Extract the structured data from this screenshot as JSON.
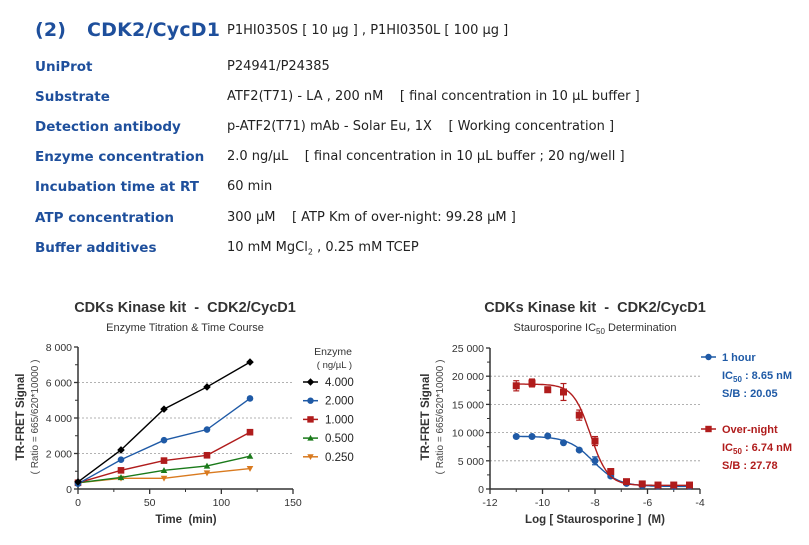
{
  "header": {
    "number": "(2)",
    "title": "CDK2/CycD1",
    "catalog": "P1HI0350S [ 10 µg ] , P1HI0350L [ 100 µg ]"
  },
  "specs": [
    {
      "label": "UniProt",
      "value": "P24941/P24385"
    },
    {
      "label": "Substrate",
      "value": "ATF2(T71) - LA , 200 nM    [ final concentration in 10 µL buffer ]"
    },
    {
      "label": "Detection antibody",
      "value": "p-ATF2(T71) mAb - Solar Eu, 1X    [ Working concentration ]"
    },
    {
      "label": "Enzyme concentration",
      "value": "2.0 ng/µL    [ final concentration in 10 µL buffer ; 20 ng/well ]"
    },
    {
      "label": "Incubation time at RT",
      "value": "60 min"
    },
    {
      "label": "ATP concentration",
      "value": "300 µM    [ ATP Km of over-night: 99.28 µM ]"
    },
    {
      "label": "Buffer additives",
      "value_pre": "10 mM MgCl",
      "value_sub": "2",
      "value_post": " , 0.25 mM TCEP"
    }
  ],
  "chart_data": [
    {
      "type": "line",
      "title": "CDKs Kinase kit  -  CDK2/CycD1",
      "subtitle": "Enzyme Titration & Time Course",
      "xlabel": "Time  (min)",
      "ylabel": "TR-FRET Signal",
      "ylabel2": "( Ratio = 665/620*10000 )",
      "xlim": [
        0,
        150
      ],
      "ylim": [
        0,
        8000
      ],
      "xticks": [
        0,
        50,
        100,
        150
      ],
      "xtick_labels": [
        "0",
        "50",
        "100",
        "150"
      ],
      "yticks": [
        0,
        2000,
        4000,
        6000,
        8000
      ],
      "ytick_labels": [
        "0",
        "2 000",
        "4 000",
        "6 000",
        "8 000"
      ],
      "grid": "dashed horizontal at 2000, 4000, 6000",
      "legend_title": "Enzyme",
      "legend_subtitle": "( ng/µL )",
      "legend_position": "right",
      "x": [
        0,
        30,
        60,
        90,
        120
      ],
      "series": [
        {
          "name": "4.000",
          "color": "#000000",
          "marker": "diamond",
          "values": [
            400,
            2200,
            4500,
            5750,
            7150
          ]
        },
        {
          "name": "2.000",
          "color": "#1f5aa6",
          "marker": "circle",
          "values": [
            300,
            1650,
            2750,
            3350,
            5100
          ]
        },
        {
          "name": "1.000",
          "color": "#b01c1c",
          "marker": "square",
          "values": [
            350,
            1050,
            1600,
            1900,
            3200
          ]
        },
        {
          "name": "0.500",
          "color": "#1a7a1a",
          "marker": "triangle-up",
          "values": [
            350,
            650,
            1050,
            1300,
            1850
          ]
        },
        {
          "name": "0.250",
          "color": "#d97a1f",
          "marker": "triangle-down",
          "values": [
            350,
            600,
            600,
            900,
            1150
          ]
        }
      ]
    },
    {
      "type": "scatter",
      "title": "CDKs Kinase kit  -  CDK2/CycD1",
      "subtitle_pre": "Staurosporine IC",
      "subtitle_sub": "50",
      "subtitle_post": " Determination",
      "xlabel": "Log [ Staurosporine ]  (M)",
      "ylabel": "TR-FRET Signal",
      "ylabel2": "( Ratio = 665/620*10000 )",
      "xlim": [
        -12,
        -4
      ],
      "ylim": [
        0,
        25000
      ],
      "xticks": [
        -12,
        -10,
        -8,
        -6,
        -4
      ],
      "xtick_labels": [
        "-12",
        "-10",
        "-8",
        "-6",
        "-4"
      ],
      "yticks": [
        0,
        5000,
        10000,
        15000,
        20000,
        25000
      ],
      "ytick_labels": [
        "0",
        "5 000",
        "10 000",
        "15 000",
        "20 000",
        "25 000"
      ],
      "grid": "dashed horizontal at 5000, 10000, 15000, 20000",
      "legend_position": "right",
      "x": [
        -11,
        -10.4,
        -9.8,
        -9.2,
        -8.6,
        -8.0,
        -7.4,
        -6.8,
        -6.2,
        -5.6,
        -5.0,
        -4.4
      ],
      "series": [
        {
          "name": "1 hour",
          "color": "#1f5aa6",
          "marker": "circle",
          "ic50_label": "IC",
          "ic50_sub": "50",
          "ic50_value": " : 8.65 nM",
          "sb": "S/B : 20.05",
          "values": [
            9300,
            9300,
            9400,
            8200,
            6900,
            5000,
            2300,
            1000,
            600,
            500,
            450,
            500
          ],
          "errors": [
            200,
            200,
            200,
            200,
            200,
            700,
            300,
            200,
            100,
            100,
            100,
            100
          ],
          "fit": {
            "top": 9350,
            "bottom": 450,
            "logIC50": -8.063,
            "hill": 0.9
          }
        },
        {
          "name": "Over-night",
          "color": "#b01c1c",
          "marker": "square",
          "ic50_label": "IC",
          "ic50_sub": "50",
          "ic50_value": " : 6.74 nM",
          "sb": "S/B : 27.78",
          "values": [
            18300,
            18800,
            17600,
            17200,
            13100,
            8500,
            3100,
            1300,
            900,
            700,
            700,
            700
          ],
          "errors": [
            900,
            700,
            300,
            1500,
            900,
            800,
            300,
            200,
            100,
            100,
            100,
            100
          ],
          "fit": {
            "top": 18600,
            "bottom": 650,
            "logIC50": -8.171,
            "hill": 1.3
          }
        }
      ]
    }
  ]
}
